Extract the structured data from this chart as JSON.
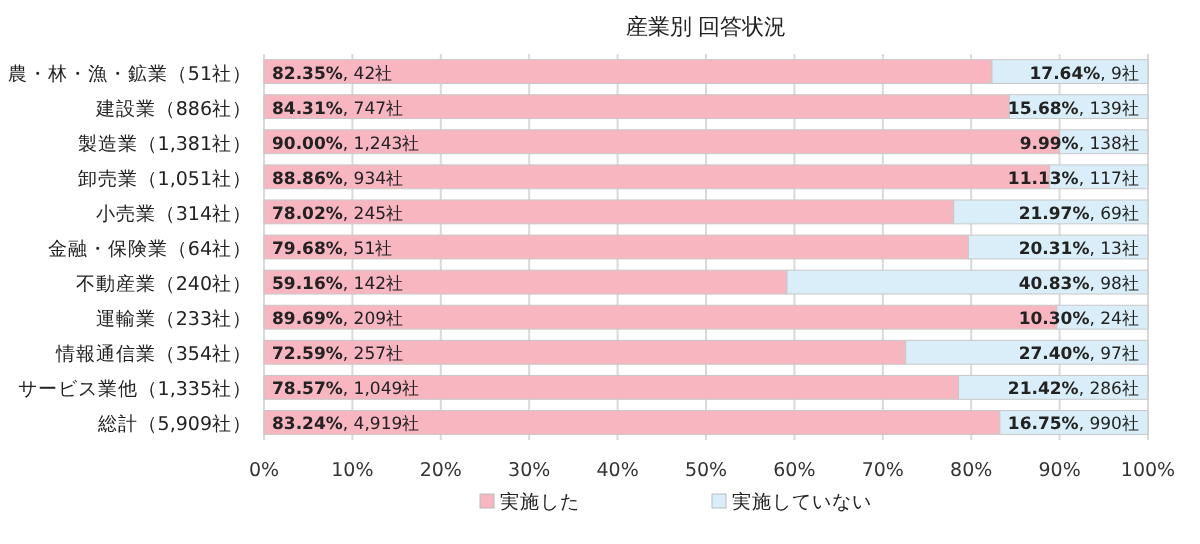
{
  "chart_data": {
    "type": "bar",
    "orientation": "horizontal",
    "stacked": true,
    "title": "産業別 回答状況",
    "categories": [
      "農・林・漁・鉱業（51社）",
      "建設業（886社）",
      "製造業（1,381社）",
      "卸売業（1,051社）",
      "小売業（314社）",
      "金融・保険業（64社）",
      "不動産業（240社）",
      "運輸業（233社）",
      "情報通信業（354社）",
      "サービス業他（1,335社）",
      "総計（5,909社）"
    ],
    "series": [
      {
        "name": "実施した",
        "color": "#f7b6c0",
        "values": [
          82.35,
          84.31,
          90.0,
          88.86,
          78.02,
          79.68,
          59.16,
          89.69,
          72.59,
          78.57,
          83.24
        ],
        "value_labels": [
          "82.35%, 42社",
          "84.31%, 747社",
          "90.00%, 1,243社",
          "88.86%, 934社",
          "78.02%, 245社",
          "79.68%, 51社",
          "59.16%, 142社",
          "89.69%, 209社",
          "72.59%, 257社",
          "78.57%, 1,049社",
          "83.24%, 4,919社"
        ]
      },
      {
        "name": "実施していない",
        "color": "#d9eef8",
        "values": [
          17.64,
          15.68,
          9.99,
          11.13,
          21.97,
          20.31,
          40.83,
          10.3,
          27.4,
          21.42,
          16.75
        ],
        "value_labels": [
          "17.64%, 9社",
          "15.68%, 139社",
          "9.99%, 138社",
          "11.13%, 117社",
          "21.97%, 69社",
          "20.31%, 13社",
          "40.83%, 98社",
          "10.30%, 24社",
          "27.40%, 97社",
          "21.42%, 286社",
          "16.75%, 990社"
        ]
      }
    ],
    "xlim": [
      0,
      100
    ],
    "xticks": [
      {
        "value": 0,
        "label": "0%"
      },
      {
        "value": 10,
        "label": "10%"
      },
      {
        "value": 20,
        "label": "20%"
      },
      {
        "value": 30,
        "label": "30%"
      },
      {
        "value": 40,
        "label": "40%"
      },
      {
        "value": 50,
        "label": "50%"
      },
      {
        "value": 60,
        "label": "60%"
      },
      {
        "value": 70,
        "label": "70%"
      },
      {
        "value": 80,
        "label": "80%"
      },
      {
        "value": 90,
        "label": "90%"
      },
      {
        "value": 100,
        "label": "100%"
      }
    ],
    "grid": "x",
    "legend": "bottom"
  }
}
